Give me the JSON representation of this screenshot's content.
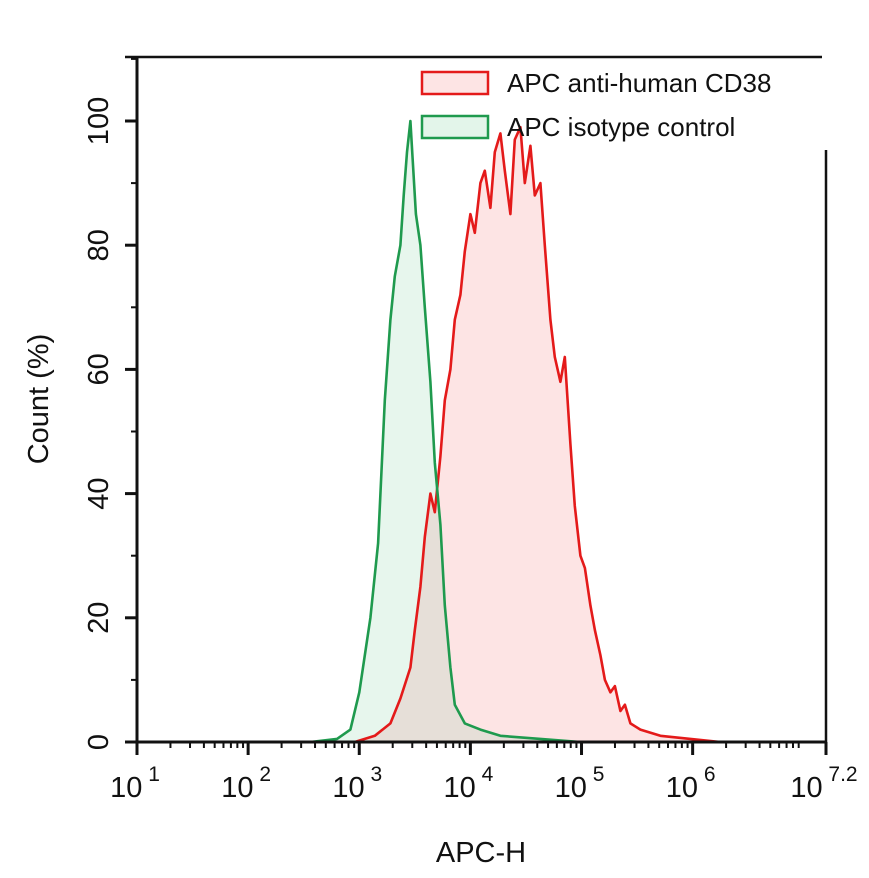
{
  "chart_data": {
    "type": "area",
    "title": "",
    "xlabel": "APC-H",
    "ylabel": "Count (%)",
    "xscale": "log10",
    "xlim_log10": [
      1,
      7.2
    ],
    "ylim": [
      0,
      110
    ],
    "x_ticks": [
      {
        "base": "10",
        "exp": "1",
        "log": 1
      },
      {
        "base": "10",
        "exp": "2",
        "log": 2
      },
      {
        "base": "10",
        "exp": "3",
        "log": 3
      },
      {
        "base": "10",
        "exp": "4",
        "log": 4
      },
      {
        "base": "10",
        "exp": "5",
        "log": 5
      },
      {
        "base": "10",
        "exp": "6",
        "log": 6
      },
      {
        "base": "10",
        "exp": "7.2",
        "log": 7.2
      }
    ],
    "y_ticks": [
      {
        "label": "0",
        "value": 0
      },
      {
        "label": "20",
        "value": 20
      },
      {
        "label": "40",
        "value": 40
      },
      {
        "label": "60",
        "value": 60
      },
      {
        "label": "80",
        "value": 80
      },
      {
        "label": "100",
        "value": 100
      }
    ],
    "grid": false,
    "legend": {
      "position": "top-right"
    },
    "series": [
      {
        "name": "APC anti-human CD38",
        "stroke": "#e41a1a",
        "fill": "#fde4e4",
        "points_log10_x_percent_y": [
          [
            2.96,
            0
          ],
          [
            3.14,
            1
          ],
          [
            3.28,
            3
          ],
          [
            3.37,
            7
          ],
          [
            3.46,
            12
          ],
          [
            3.5,
            18
          ],
          [
            3.55,
            25
          ],
          [
            3.59,
            33
          ],
          [
            3.64,
            40
          ],
          [
            3.68,
            37
          ],
          [
            3.73,
            46
          ],
          [
            3.77,
            55
          ],
          [
            3.82,
            60
          ],
          [
            3.86,
            68
          ],
          [
            3.91,
            72
          ],
          [
            3.95,
            79
          ],
          [
            4.0,
            85
          ],
          [
            4.04,
            82
          ],
          [
            4.09,
            90
          ],
          [
            4.13,
            92
          ],
          [
            4.18,
            86
          ],
          [
            4.22,
            95
          ],
          [
            4.27,
            98
          ],
          [
            4.31,
            92
          ],
          [
            4.36,
            85
          ],
          [
            4.4,
            97
          ],
          [
            4.45,
            99
          ],
          [
            4.49,
            90
          ],
          [
            4.54,
            96
          ],
          [
            4.58,
            88
          ],
          [
            4.63,
            90
          ],
          [
            4.67,
            80
          ],
          [
            4.72,
            68
          ],
          [
            4.76,
            62
          ],
          [
            4.81,
            58
          ],
          [
            4.85,
            62
          ],
          [
            4.9,
            48
          ],
          [
            4.94,
            38
          ],
          [
            4.99,
            30
          ],
          [
            5.03,
            28
          ],
          [
            5.08,
            22
          ],
          [
            5.12,
            18
          ],
          [
            5.17,
            14
          ],
          [
            5.21,
            10
          ],
          [
            5.26,
            8
          ],
          [
            5.3,
            9
          ],
          [
            5.35,
            5
          ],
          [
            5.39,
            6
          ],
          [
            5.44,
            3
          ],
          [
            5.53,
            2
          ],
          [
            5.71,
            1
          ],
          [
            5.98,
            0.5
          ],
          [
            6.25,
            0
          ]
        ]
      },
      {
        "name": "APC isotype control",
        "stroke": "#1f9a4e",
        "fill": "#e3f5ea",
        "points_log10_x_percent_y": [
          [
            2.56,
            0
          ],
          [
            2.8,
            0.5
          ],
          [
            2.92,
            2
          ],
          [
            3.0,
            8
          ],
          [
            3.1,
            20
          ],
          [
            3.17,
            32
          ],
          [
            3.23,
            55
          ],
          [
            3.28,
            68
          ],
          [
            3.32,
            75
          ],
          [
            3.37,
            80
          ],
          [
            3.4,
            88
          ],
          [
            3.43,
            95
          ],
          [
            3.46,
            100
          ],
          [
            3.48,
            94
          ],
          [
            3.51,
            85
          ],
          [
            3.55,
            80
          ],
          [
            3.59,
            70
          ],
          [
            3.64,
            58
          ],
          [
            3.68,
            45
          ],
          [
            3.73,
            35
          ],
          [
            3.77,
            22
          ],
          [
            3.82,
            12
          ],
          [
            3.86,
            6
          ],
          [
            3.95,
            3
          ],
          [
            4.09,
            2
          ],
          [
            4.27,
            1
          ],
          [
            4.63,
            0.5
          ],
          [
            4.99,
            0
          ]
        ]
      }
    ],
    "overlap_fill": "#e6dfd8"
  }
}
